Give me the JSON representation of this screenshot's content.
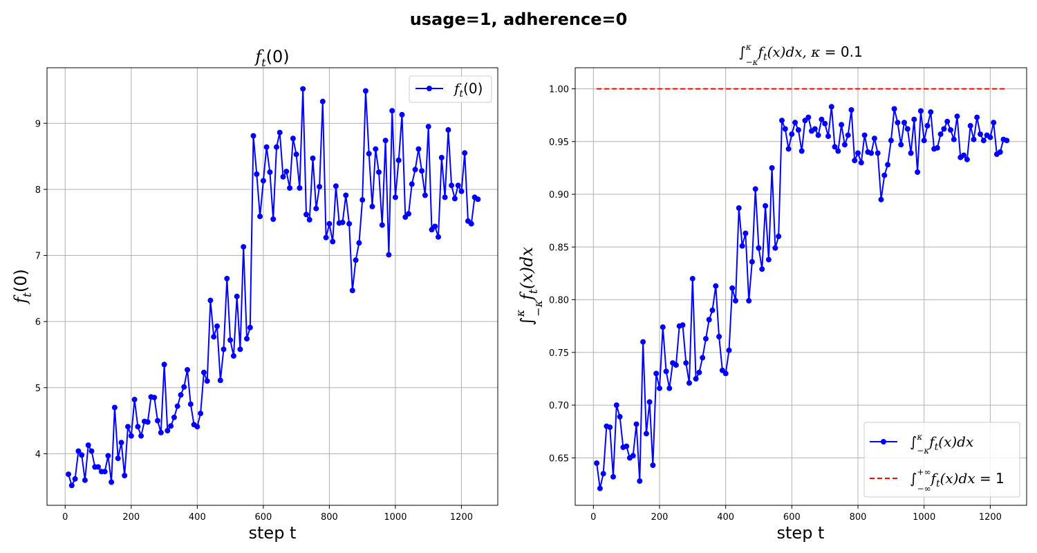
{
  "suptitle": "usage=1, adherence=0",
  "colors": {
    "series": "#0000ff",
    "reference": "#ff0000",
    "grid": "#b0b0b0"
  },
  "chart_data": [
    {
      "type": "line",
      "title": "f_t(0)",
      "xlabel": "step t",
      "ylabel": "f_t(0)",
      "xlim": [
        -55,
        1310
      ],
      "ylim": [
        3.22,
        9.84
      ],
      "xticks": [
        0,
        200,
        400,
        600,
        800,
        1000,
        1200
      ],
      "yticks": [
        4,
        5,
        6,
        7,
        8,
        9
      ],
      "grid": true,
      "legend_position": "upper right",
      "series": [
        {
          "name": "f_t(0)",
          "style": "line-with-markers",
          "x": [
            10,
            20,
            30,
            40,
            50,
            60,
            70,
            80,
            90,
            100,
            110,
            120,
            130,
            140,
            150,
            160,
            170,
            180,
            190,
            200,
            210,
            220,
            230,
            240,
            250,
            260,
            270,
            280,
            290,
            300,
            310,
            320,
            330,
            340,
            350,
            360,
            370,
            380,
            390,
            400,
            410,
            420,
            430,
            440,
            450,
            460,
            470,
            480,
            490,
            500,
            510,
            520,
            530,
            540,
            550,
            560,
            570,
            580,
            590,
            600,
            610,
            620,
            630,
            640,
            650,
            660,
            670,
            680,
            690,
            700,
            710,
            720,
            730,
            740,
            750,
            760,
            770,
            780,
            790,
            800,
            810,
            820,
            830,
            840,
            850,
            860,
            870,
            880,
            890,
            900,
            910,
            920,
            930,
            940,
            950,
            960,
            970,
            980,
            990,
            1000,
            1010,
            1020,
            1030,
            1040,
            1050,
            1060,
            1070,
            1080,
            1090,
            1100,
            1110,
            1120,
            1130,
            1140,
            1150,
            1160,
            1170,
            1180,
            1190,
            1200,
            1210,
            1220,
            1230,
            1240,
            1250
          ],
          "values": [
            3.69,
            3.52,
            3.62,
            4.04,
            3.98,
            3.6,
            4.13,
            4.04,
            3.8,
            3.8,
            3.73,
            3.73,
            3.97,
            3.57,
            4.7,
            3.93,
            4.17,
            3.67,
            4.41,
            4.27,
            4.82,
            4.41,
            4.27,
            4.49,
            4.48,
            4.86,
            4.85,
            4.5,
            4.32,
            5.35,
            4.35,
            4.42,
            4.55,
            4.72,
            4.89,
            5.01,
            5.27,
            4.75,
            4.44,
            4.41,
            4.61,
            5.23,
            5.1,
            6.32,
            5.77,
            5.93,
            5.11,
            5.58,
            6.65,
            5.72,
            5.48,
            6.38,
            5.58,
            7.13,
            5.74,
            5.91,
            8.81,
            8.23,
            7.59,
            8.13,
            8.64,
            8.26,
            7.55,
            8.64,
            8.86,
            8.19,
            8.27,
            8.02,
            8.77,
            8.53,
            8.02,
            9.52,
            7.62,
            7.54,
            8.47,
            7.71,
            8.04,
            9.33,
            7.27,
            7.48,
            7.21,
            8.05,
            7.49,
            7.5,
            7.91,
            7.48,
            6.47,
            6.93,
            7.19,
            7.84,
            9.49,
            8.54,
            7.74,
            8.61,
            8.26,
            7.46,
            8.74,
            7.01,
            9.19,
            7.88,
            8.44,
            9.13,
            7.58,
            7.63,
            8.08,
            8.3,
            8.61,
            8.28,
            7.91,
            8.95,
            7.39,
            7.44,
            7.28,
            8.48,
            7.88,
            8.9,
            8.06,
            7.86,
            8.06,
            7.97,
            8.55,
            7.52,
            7.48,
            7.88,
            7.85
          ]
        }
      ]
    },
    {
      "type": "line",
      "title": "∫_{−κ}^{κ} f_t(x)dx, κ = 0.1",
      "xlabel": "step t",
      "ylabel": "∫_{−κ}^{κ} f_t(x)dx",
      "xlim": [
        -55,
        1310
      ],
      "ylim": [
        0.605,
        1.02
      ],
      "xticks": [
        0,
        200,
        400,
        600,
        800,
        1000,
        1200
      ],
      "yticks": [
        0.65,
        0.7,
        0.75,
        0.8,
        0.85,
        0.9,
        0.95,
        1.0
      ],
      "grid": true,
      "legend_position": "lower right",
      "series": [
        {
          "name": "∫_{−κ}^{κ} f_t(x)dx",
          "style": "line-with-markers",
          "x": [
            10,
            20,
            30,
            40,
            50,
            60,
            70,
            80,
            90,
            100,
            110,
            120,
            130,
            140,
            150,
            160,
            170,
            180,
            190,
            200,
            210,
            220,
            230,
            240,
            250,
            260,
            270,
            280,
            290,
            300,
            310,
            320,
            330,
            340,
            350,
            360,
            370,
            380,
            390,
            400,
            410,
            420,
            430,
            440,
            450,
            460,
            470,
            480,
            490,
            500,
            510,
            520,
            530,
            540,
            550,
            560,
            570,
            580,
            590,
            600,
            610,
            620,
            630,
            640,
            650,
            660,
            670,
            680,
            690,
            700,
            710,
            720,
            730,
            740,
            750,
            760,
            770,
            780,
            790,
            800,
            810,
            820,
            830,
            840,
            850,
            860,
            870,
            880,
            890,
            900,
            910,
            920,
            930,
            940,
            950,
            960,
            970,
            980,
            990,
            1000,
            1010,
            1020,
            1030,
            1040,
            1050,
            1060,
            1070,
            1080,
            1090,
            1100,
            1110,
            1120,
            1130,
            1140,
            1150,
            1160,
            1170,
            1180,
            1190,
            1200,
            1210,
            1220,
            1230,
            1240,
            1250
          ],
          "values": [
            0.645,
            0.621,
            0.635,
            0.68,
            0.679,
            0.632,
            0.7,
            0.689,
            0.66,
            0.661,
            0.65,
            0.652,
            0.682,
            0.628,
            0.76,
            0.673,
            0.703,
            0.643,
            0.73,
            0.716,
            0.774,
            0.732,
            0.716,
            0.74,
            0.738,
            0.775,
            0.776,
            0.74,
            0.721,
            0.82,
            0.725,
            0.731,
            0.745,
            0.763,
            0.781,
            0.79,
            0.813,
            0.765,
            0.733,
            0.73,
            0.752,
            0.811,
            0.799,
            0.887,
            0.851,
            0.863,
            0.799,
            0.836,
            0.905,
            0.849,
            0.829,
            0.889,
            0.838,
            0.925,
            0.849,
            0.86,
            0.97,
            0.962,
            0.943,
            0.957,
            0.968,
            0.961,
            0.941,
            0.97,
            0.973,
            0.96,
            0.962,
            0.956,
            0.971,
            0.967,
            0.955,
            0.983,
            0.945,
            0.941,
            0.966,
            0.947,
            0.956,
            0.98,
            0.932,
            0.939,
            0.93,
            0.956,
            0.94,
            0.939,
            0.953,
            0.939,
            0.895,
            0.918,
            0.928,
            0.951,
            0.981,
            0.968,
            0.947,
            0.968,
            0.962,
            0.939,
            0.971,
            0.921,
            0.979,
            0.951,
            0.965,
            0.978,
            0.943,
            0.944,
            0.957,
            0.962,
            0.969,
            0.961,
            0.952,
            0.974,
            0.935,
            0.937,
            0.933,
            0.965,
            0.952,
            0.973,
            0.957,
            0.951,
            0.956,
            0.954,
            0.968,
            0.938,
            0.94,
            0.952,
            0.951
          ]
        },
        {
          "name": "∫_{−∞}^{+∞} f_t(x)dx = 1",
          "style": "dashed",
          "x": [
            10,
            1250
          ],
          "values": [
            1.0,
            1.0
          ]
        }
      ]
    }
  ]
}
